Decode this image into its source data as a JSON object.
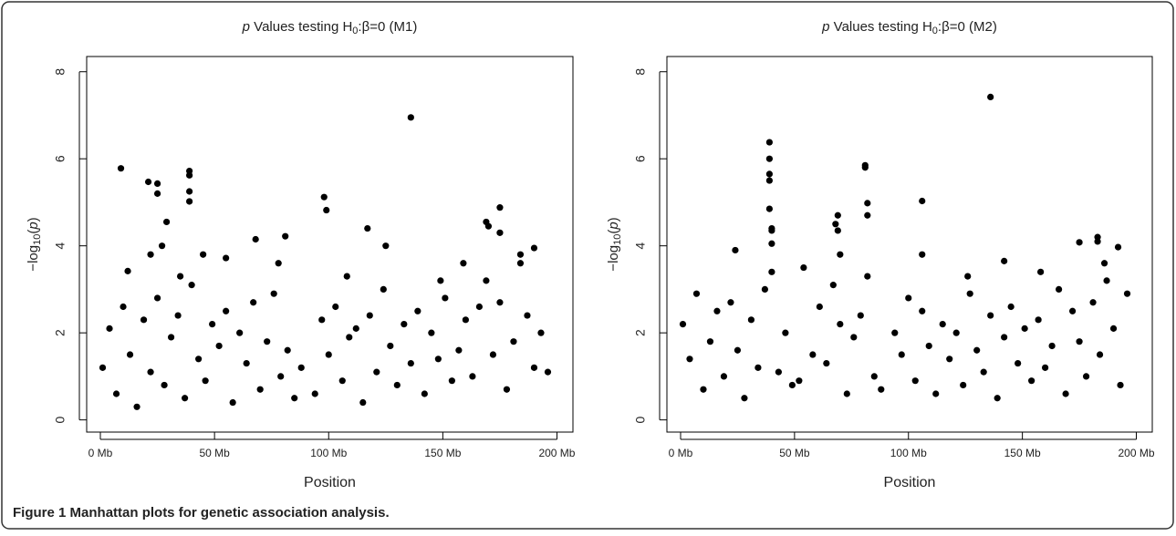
{
  "chart_data": [
    {
      "type": "scatter",
      "title": [
        "p",
        " Values testing H",
        "0",
        ":β=0 (M1)"
      ],
      "ylabel": [
        "−log",
        "10",
        "(",
        "p",
        ")"
      ],
      "xlabel": "Position",
      "color": "#000000",
      "xlim": [
        -6,
        207
      ],
      "ylim": [
        -0.28,
        8.35
      ],
      "xticks": [
        {
          "value": 0,
          "label": "0 Mb"
        },
        {
          "value": 50,
          "label": "50 Mb"
        },
        {
          "value": 100,
          "label": "100 Mb"
        },
        {
          "value": 150,
          "label": "150 Mb"
        },
        {
          "value": 200,
          "label": "200 Mb"
        }
      ],
      "yticks": [
        0,
        2,
        4,
        6,
        8
      ],
      "x": [
        9,
        21,
        25,
        25,
        29,
        39,
        39,
        39,
        39,
        22,
        27,
        45,
        68,
        81,
        98,
        99,
        117,
        136,
        125,
        169,
        170,
        175,
        175,
        184,
        190,
        78,
        159,
        55,
        12,
        35,
        108,
        149,
        1,
        4,
        7,
        10,
        13,
        16,
        19,
        22,
        25,
        28,
        31,
        34,
        37,
        40,
        43,
        46,
        49,
        52,
        55,
        58,
        61,
        64,
        67,
        70,
        73,
        76,
        79,
        82,
        85,
        88,
        94,
        97,
        100,
        103,
        106,
        109,
        112,
        115,
        118,
        121,
        124,
        127,
        130,
        133,
        136,
        139,
        142,
        145,
        148,
        151,
        154,
        157,
        160,
        163,
        166,
        169,
        172,
        175,
        178,
        181,
        184,
        187,
        190,
        193,
        196
      ],
      "values": [
        5.78,
        5.47,
        5.43,
        5.2,
        4.55,
        5.72,
        5.62,
        5.25,
        5.02,
        3.8,
        4.0,
        3.8,
        4.15,
        4.22,
        5.12,
        4.82,
        4.4,
        6.95,
        4.0,
        4.55,
        4.45,
        4.88,
        4.3,
        3.8,
        3.95,
        3.6,
        3.6,
        3.72,
        3.42,
        3.3,
        3.3,
        3.2,
        1.2,
        2.1,
        0.6,
        2.6,
        1.5,
        0.3,
        2.3,
        1.1,
        2.8,
        0.8,
        1.9,
        2.4,
        0.5,
        3.1,
        1.4,
        0.9,
        2.2,
        1.7,
        2.5,
        0.4,
        2.0,
        1.3,
        2.7,
        0.7,
        1.8,
        2.9,
        1.0,
        1.6,
        0.5,
        1.2,
        0.6,
        2.3,
        1.5,
        2.6,
        0.9,
        1.9,
        2.1,
        0.4,
        2.4,
        1.1,
        3.0,
        1.7,
        0.8,
        2.2,
        1.3,
        2.5,
        0.6,
        2.0,
        1.4,
        2.8,
        0.9,
        1.6,
        2.3,
        1.0,
        2.6,
        3.2,
        1.5,
        2.7,
        0.7,
        1.8,
        3.6,
        2.4,
        1.2,
        2.0,
        1.1
      ]
    },
    {
      "type": "scatter",
      "title": [
        "p",
        " Values testing H",
        "0",
        ":β=0 (M2)"
      ],
      "ylabel": [
        "−log",
        "10",
        "(",
        "p",
        ")"
      ],
      "xlabel": "Position",
      "color": "#000000",
      "xlim": [
        -6,
        207
      ],
      "ylim": [
        -0.28,
        8.35
      ],
      "xticks": [
        {
          "value": 0,
          "label": "0 Mb"
        },
        {
          "value": 50,
          "label": "50 Mb"
        },
        {
          "value": 100,
          "label": "100 Mb"
        },
        {
          "value": 150,
          "label": "150 Mb"
        },
        {
          "value": 200,
          "label": "200 Mb"
        }
      ],
      "yticks": [
        0,
        2,
        4,
        6,
        8
      ],
      "x": [
        39,
        39,
        39,
        39,
        39,
        40,
        40,
        40,
        81,
        81,
        82,
        82,
        69,
        68,
        69,
        70,
        106,
        106,
        136,
        175,
        183,
        183,
        192,
        186,
        142,
        24,
        54,
        158,
        126,
        1,
        4,
        7,
        10,
        13,
        16,
        19,
        22,
        25,
        28,
        31,
        34,
        37,
        40,
        43,
        46,
        49,
        52,
        58,
        61,
        64,
        67,
        70,
        73,
        76,
        79,
        82,
        85,
        88,
        94,
        97,
        100,
        103,
        106,
        109,
        112,
        115,
        118,
        121,
        124,
        127,
        130,
        133,
        136,
        139,
        142,
        145,
        148,
        151,
        154,
        157,
        160,
        163,
        166,
        169,
        172,
        175,
        178,
        181,
        184,
        187,
        190,
        193,
        196
      ],
      "values": [
        6.38,
        6.0,
        5.65,
        5.5,
        4.85,
        4.4,
        4.35,
        4.05,
        5.85,
        5.8,
        4.98,
        4.7,
        4.7,
        4.5,
        4.35,
        3.8,
        5.03,
        3.8,
        7.42,
        4.08,
        4.2,
        4.1,
        3.97,
        3.6,
        3.65,
        3.9,
        3.5,
        3.4,
        3.3,
        2.2,
        1.4,
        2.9,
        0.7,
        1.8,
        2.5,
        1.0,
        2.7,
        1.6,
        0.5,
        2.3,
        1.2,
        3.0,
        3.4,
        1.1,
        2.0,
        0.8,
        0.9,
        1.5,
        2.6,
        1.3,
        3.1,
        2.2,
        0.6,
        1.9,
        2.4,
        3.3,
        1.0,
        0.7,
        2.0,
        1.5,
        2.8,
        0.9,
        2.5,
        1.7,
        0.6,
        2.2,
        1.4,
        2.0,
        0.8,
        2.9,
        1.6,
        1.1,
        2.4,
        0.5,
        1.9,
        2.6,
        1.3,
        2.1,
        0.9,
        2.3,
        1.2,
        1.7,
        3.0,
        0.6,
        2.5,
        1.8,
        1.0,
        2.7,
        1.5,
        3.2,
        2.1,
        0.8,
        2.9
      ]
    }
  ],
  "caption": {
    "label": "Figure 1",
    "text": "Manhattan plots for genetic association analysis."
  }
}
